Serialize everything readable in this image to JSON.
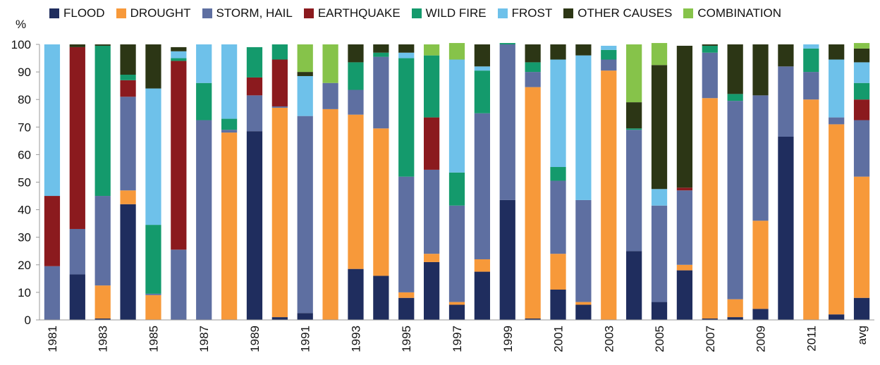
{
  "chart_data": {
    "type": "bar",
    "stacked": true,
    "ylabel": "%",
    "ylim": [
      0,
      100
    ],
    "yticks": [
      0,
      10,
      20,
      30,
      40,
      50,
      60,
      70,
      80,
      90,
      100
    ],
    "grid": false,
    "legend_position": "top",
    "categories": [
      "1981",
      "1982",
      "1983",
      "1984",
      "1985",
      "1986",
      "1987",
      "1988",
      "1989",
      "1990",
      "1991",
      "1992",
      "1993",
      "1994",
      "1995",
      "1996",
      "1997",
      "1998",
      "1999",
      "2000",
      "2001",
      "2002",
      "2003",
      "2004",
      "2005",
      "2006",
      "2007",
      "2008",
      "2009",
      "2010",
      "2011",
      "2012",
      "avg"
    ],
    "tick_labels": [
      "1981",
      "",
      "1983",
      "",
      "1985",
      "",
      "1987",
      "",
      "1989",
      "",
      "1991",
      "",
      "1993",
      "",
      "1995",
      "",
      "1997",
      "",
      "1999",
      "",
      "2001",
      "",
      "2003",
      "",
      "2005",
      "",
      "2007",
      "",
      "2009",
      "",
      "2011",
      "",
      "avg"
    ],
    "series": [
      {
        "name": "FLOOD",
        "color": "#1f2d5e",
        "values": [
          0,
          16.5,
          0.5,
          42,
          0,
          0,
          0,
          0,
          68.5,
          1,
          2.5,
          0,
          18.5,
          16,
          8,
          21,
          5.5,
          17.5,
          43.5,
          0.5,
          11,
          5.5,
          0,
          25,
          6.5,
          18,
          0.5,
          1,
          4,
          66.5,
          0,
          2,
          8
        ]
      },
      {
        "name": "DROUGHT",
        "color": "#f7993a",
        "values": [
          0,
          0,
          12,
          5,
          9,
          0,
          0,
          68,
          0,
          76,
          0,
          76.5,
          56,
          53.5,
          2,
          3,
          1,
          4.5,
          0,
          84,
          13,
          1,
          90.5,
          0,
          0,
          2,
          80,
          6.5,
          32,
          0,
          80,
          69,
          44
        ]
      },
      {
        "name": "STORM, HAIL",
        "color": "#5e6fa1",
        "values": [
          19.5,
          16.5,
          32.5,
          34,
          0.5,
          25.5,
          72.5,
          1,
          13,
          0.5,
          71.5,
          9.5,
          9,
          26,
          42,
          30.5,
          35,
          53,
          56.5,
          5.5,
          26.5,
          37,
          4,
          44,
          35,
          27,
          16.5,
          72,
          45.5,
          25.5,
          10,
          2.5,
          20.5
        ]
      },
      {
        "name": "EARTHQUAKE",
        "color": "#8b1a1e",
        "values": [
          25.5,
          66,
          0,
          6,
          0,
          68.5,
          0,
          0,
          6.5,
          17,
          0,
          0,
          0,
          0,
          0,
          19,
          0,
          0,
          0,
          0,
          0,
          0,
          0,
          0,
          0,
          1,
          0,
          0,
          0,
          0,
          0,
          0,
          7.5
        ]
      },
      {
        "name": "WILD FIRE",
        "color": "#149a6c",
        "values": [
          0,
          0,
          54.5,
          2,
          25,
          1,
          13.5,
          4,
          11,
          5.5,
          0,
          0,
          10,
          1.5,
          43,
          22.5,
          12,
          15.5,
          0.5,
          3.5,
          5,
          0,
          3.5,
          0.5,
          0,
          0,
          2.5,
          2.5,
          0,
          0,
          8.5,
          0,
          6
        ]
      },
      {
        "name": "FROST",
        "color": "#6ec1ea",
        "values": [
          55,
          0,
          0,
          0,
          49.5,
          2.5,
          14,
          27,
          0,
          0,
          14.5,
          0,
          0,
          0,
          2,
          0,
          41,
          1.5,
          0,
          0,
          39,
          52.5,
          1.5,
          0,
          6,
          0,
          0,
          0,
          0,
          0,
          1.5,
          21,
          7.5
        ]
      },
      {
        "name": "OTHER CAUSES",
        "color": "#2c3615",
        "values": [
          0,
          1,
          0.5,
          11,
          16,
          1.5,
          0,
          0,
          0,
          0,
          1.5,
          0,
          6.5,
          3,
          3,
          0,
          0,
          8,
          0,
          6.5,
          5.5,
          4,
          0,
          9.5,
          45,
          51.5,
          0.5,
          18,
          18.5,
          8,
          0,
          5.5,
          5
        ]
      },
      {
        "name": "COMBINATION",
        "color": "#86c34a",
        "values": [
          0,
          0,
          0,
          0,
          0,
          0,
          0,
          0,
          0,
          0,
          10,
          14,
          0,
          0,
          0,
          4,
          6,
          0,
          0,
          0,
          0,
          0,
          0,
          21,
          8,
          0,
          0,
          0,
          0,
          0,
          0,
          0,
          2
        ]
      }
    ]
  }
}
